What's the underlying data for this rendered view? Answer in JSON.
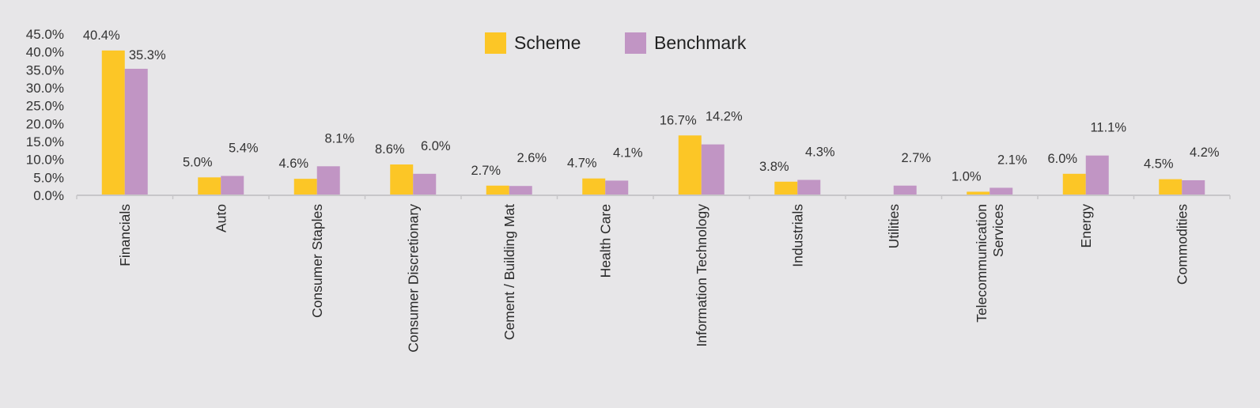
{
  "chart_data": {
    "type": "bar",
    "categories": [
      "Financials",
      "Auto",
      "Consumer Staples",
      "Consumer Discretionary",
      "Cement / Building Mat",
      "Health Care",
      "Information Technology",
      "Industrials",
      "Utilities",
      "Telecommunication Services",
      "Energy",
      "Commodities"
    ],
    "category_lines": [
      [
        "Financials"
      ],
      [
        "Auto"
      ],
      [
        "Consumer Staples"
      ],
      [
        "Consumer Discretionary"
      ],
      [
        "Cement / Building Mat"
      ],
      [
        "Health Care"
      ],
      [
        "Information Technology"
      ],
      [
        "Industrials"
      ],
      [
        "Utilities"
      ],
      [
        "Telecommunication",
        "Services"
      ],
      [
        "Energy"
      ],
      [
        "Commodities"
      ]
    ],
    "series": [
      {
        "name": "Scheme",
        "color": "#fcc626",
        "values": [
          40.4,
          5.0,
          4.6,
          8.6,
          2.7,
          4.7,
          16.7,
          3.8,
          null,
          1.0,
          6.0,
          4.5
        ],
        "labels": [
          "40.4%",
          "5.0%",
          "4.6%",
          "8.6%",
          "2.7%",
          "4.7%",
          "16.7%",
          "3.8%",
          null,
          "1.0%",
          "6.0%",
          "4.5%"
        ]
      },
      {
        "name": "Benchmark",
        "color": "#c195c4",
        "values": [
          35.3,
          5.4,
          8.1,
          6.0,
          2.6,
          4.1,
          14.2,
          4.3,
          2.7,
          2.1,
          11.1,
          4.2
        ],
        "labels": [
          "35.3%",
          "5.4%",
          "8.1%",
          "6.0%",
          "2.6%",
          "4.1%",
          "14.2%",
          "4.3%",
          "2.7%",
          "2.1%",
          "11.1%",
          "4.2%"
        ]
      }
    ],
    "yticks": [
      "0.0%",
      "5.0%",
      "10.0%",
      "15.0%",
      "20.0%",
      "25.0%",
      "30.0%",
      "35.0%",
      "40.0%",
      "45.0%"
    ],
    "ylim": [
      0,
      45
    ],
    "legend_position": "top-center",
    "grid": false,
    "title": "",
    "xlabel": "",
    "ylabel": ""
  }
}
